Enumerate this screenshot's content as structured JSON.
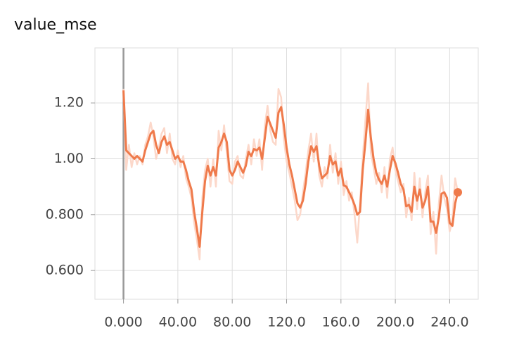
{
  "chart_data": {
    "type": "line",
    "title": "value_mse",
    "x": [
      0,
      2,
      4,
      6,
      8,
      10,
      12,
      14,
      16,
      18,
      20,
      22,
      24,
      26,
      28,
      30,
      32,
      34,
      36,
      38,
      40,
      42,
      44,
      46,
      48,
      50,
      52,
      54,
      56,
      58,
      60,
      62,
      64,
      66,
      68,
      70,
      72,
      74,
      76,
      78,
      80,
      82,
      84,
      86,
      88,
      90,
      92,
      94,
      96,
      98,
      100,
      102,
      104,
      106,
      108,
      110,
      112,
      114,
      116,
      118,
      120,
      122,
      124,
      126,
      128,
      130,
      132,
      134,
      136,
      138,
      140,
      142,
      144,
      146,
      148,
      150,
      152,
      154,
      156,
      158,
      160,
      162,
      164,
      166,
      168,
      170,
      172,
      174,
      176,
      178,
      180,
      182,
      184,
      186,
      188,
      190,
      192,
      194,
      196,
      198,
      200,
      202,
      204,
      206,
      208,
      210,
      212,
      214,
      216,
      218,
      220,
      222,
      224,
      226,
      228,
      230,
      232,
      234,
      236,
      238,
      240,
      242,
      244,
      246
    ],
    "series": [
      {
        "color": "#fcd8ca",
        "values": [
          1.25,
          0.96,
          1.05,
          0.97,
          1.02,
          0.98,
          1.01,
          0.98,
          1.05,
          1.08,
          1.13,
          1.08,
          1.0,
          1.04,
          1.09,
          1.11,
          1.02,
          1.09,
          1.0,
          0.98,
          1.03,
          0.97,
          1.01,
          0.93,
          0.9,
          0.86,
          0.77,
          0.71,
          0.64,
          0.86,
          0.96,
          1.0,
          0.9,
          1.0,
          0.9,
          1.1,
          1.03,
          1.12,
          1.02,
          0.92,
          0.91,
          0.99,
          1.01,
          0.94,
          0.93,
          1.0,
          1.05,
          0.98,
          1.07,
          1.01,
          1.07,
          0.96,
          1.12,
          1.19,
          1.1,
          1.06,
          1.05,
          1.25,
          1.22,
          1.07,
          0.99,
          0.95,
          0.9,
          0.85,
          0.78,
          0.8,
          0.88,
          0.95,
          1.03,
          1.09,
          0.99,
          1.09,
          0.94,
          0.9,
          0.97,
          0.93,
          1.05,
          0.95,
          1.02,
          0.91,
          0.99,
          0.87,
          0.92,
          0.85,
          0.88,
          0.8,
          0.7,
          0.84,
          1.0,
          1.14,
          1.27,
          1.02,
          0.97,
          0.91,
          0.95,
          0.88,
          0.97,
          0.86,
          1.0,
          1.04,
          0.96,
          0.92,
          0.88,
          0.91,
          0.79,
          0.86,
          0.78,
          0.95,
          0.82,
          0.93,
          0.79,
          0.88,
          0.94,
          0.73,
          0.81,
          0.66,
          0.84,
          0.94,
          0.86,
          0.82,
          0.74,
          0.78,
          0.93,
          0.88
        ]
      },
      {
        "color": "#ef7a4b",
        "values": [
          1.245,
          1.03,
          1.02,
          1.01,
          1.0,
          1.01,
          1.0,
          0.99,
          1.03,
          1.06,
          1.09,
          1.1,
          1.05,
          1.02,
          1.06,
          1.08,
          1.05,
          1.06,
          1.03,
          1.0,
          1.01,
          0.99,
          0.99,
          0.96,
          0.92,
          0.89,
          0.81,
          0.75,
          0.685,
          0.81,
          0.92,
          0.975,
          0.94,
          0.97,
          0.94,
          1.04,
          1.06,
          1.09,
          1.06,
          0.96,
          0.94,
          0.96,
          0.99,
          0.97,
          0.95,
          0.975,
          1.025,
          1.01,
          1.035,
          1.03,
          1.04,
          1.0,
          1.075,
          1.15,
          1.125,
          1.1,
          1.075,
          1.165,
          1.185,
          1.12,
          1.04,
          0.98,
          0.94,
          0.89,
          0.84,
          0.825,
          0.85,
          0.91,
          0.99,
          1.045,
          1.025,
          1.045,
          0.975,
          0.93,
          0.94,
          0.95,
          1.01,
          0.98,
          0.99,
          0.94,
          0.965,
          0.905,
          0.9,
          0.88,
          0.86,
          0.835,
          0.8,
          0.81,
          0.96,
          1.06,
          1.175,
          1.075,
          1.0,
          0.95,
          0.925,
          0.91,
          0.94,
          0.9,
          0.96,
          1.01,
          0.985,
          0.95,
          0.91,
          0.89,
          0.83,
          0.835,
          0.81,
          0.9,
          0.85,
          0.89,
          0.825,
          0.85,
          0.9,
          0.775,
          0.775,
          0.735,
          0.79,
          0.875,
          0.88,
          0.86,
          0.77,
          0.76,
          0.84,
          0.88
        ]
      }
    ],
    "xlim": [
      -21,
      261
    ],
    "ylim": [
      0.497,
      1.397
    ],
    "xticks": [
      {
        "value": 0,
        "label": "0.000"
      },
      {
        "value": 40,
        "label": "40.00"
      },
      {
        "value": 80,
        "label": "80.00"
      },
      {
        "value": 120,
        "label": "120.0"
      },
      {
        "value": 160,
        "label": "160.0"
      },
      {
        "value": 200,
        "label": "200.0"
      },
      {
        "value": 240,
        "label": "240.0"
      }
    ],
    "yticks": [
      {
        "value": 0.6,
        "label": "0.600"
      },
      {
        "value": 0.8,
        "label": "0.800"
      },
      {
        "value": 1.0,
        "label": "1.00"
      },
      {
        "value": 1.2,
        "label": "1.20"
      }
    ],
    "grid": true
  }
}
